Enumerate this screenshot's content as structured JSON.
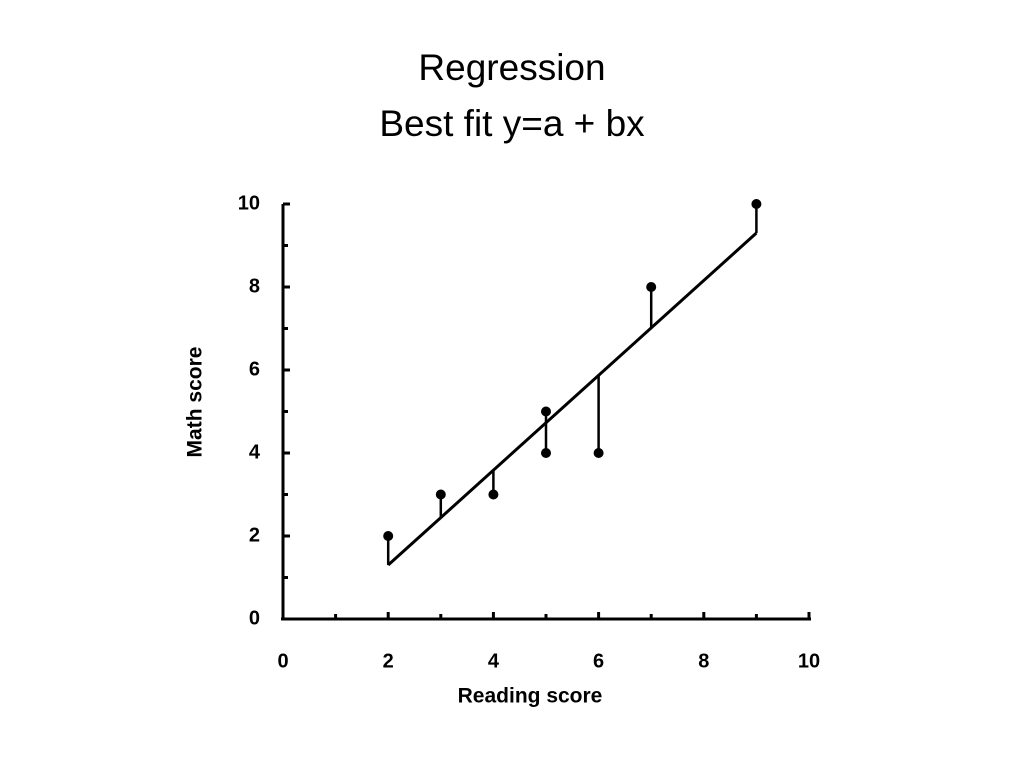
{
  "chart_data": {
    "type": "scatter",
    "title": "Regression",
    "subtitle": "Best fit y=a + bx",
    "x_label": "Reading score",
    "y_label": "Math score",
    "x": [
      2,
      3,
      4,
      5,
      5,
      6,
      7,
      9
    ],
    "values": [
      2,
      3,
      3,
      5,
      4,
      4,
      8,
      10
    ],
    "color": "#000000",
    "fit_line": {
      "x": [
        2,
        9
      ],
      "y": [
        1.3,
        9.3
      ]
    },
    "residuals": true,
    "xlim": [
      0,
      10
    ],
    "ylim": [
      0,
      10
    ],
    "xticks": [
      0,
      2,
      4,
      6,
      8,
      10
    ],
    "yticks": [
      0,
      2,
      4,
      6,
      8,
      10
    ],
    "xminor_ticks": [
      1,
      3,
      5,
      7,
      9
    ],
    "yminor_ticks": [
      1,
      3,
      5,
      7,
      9
    ]
  }
}
